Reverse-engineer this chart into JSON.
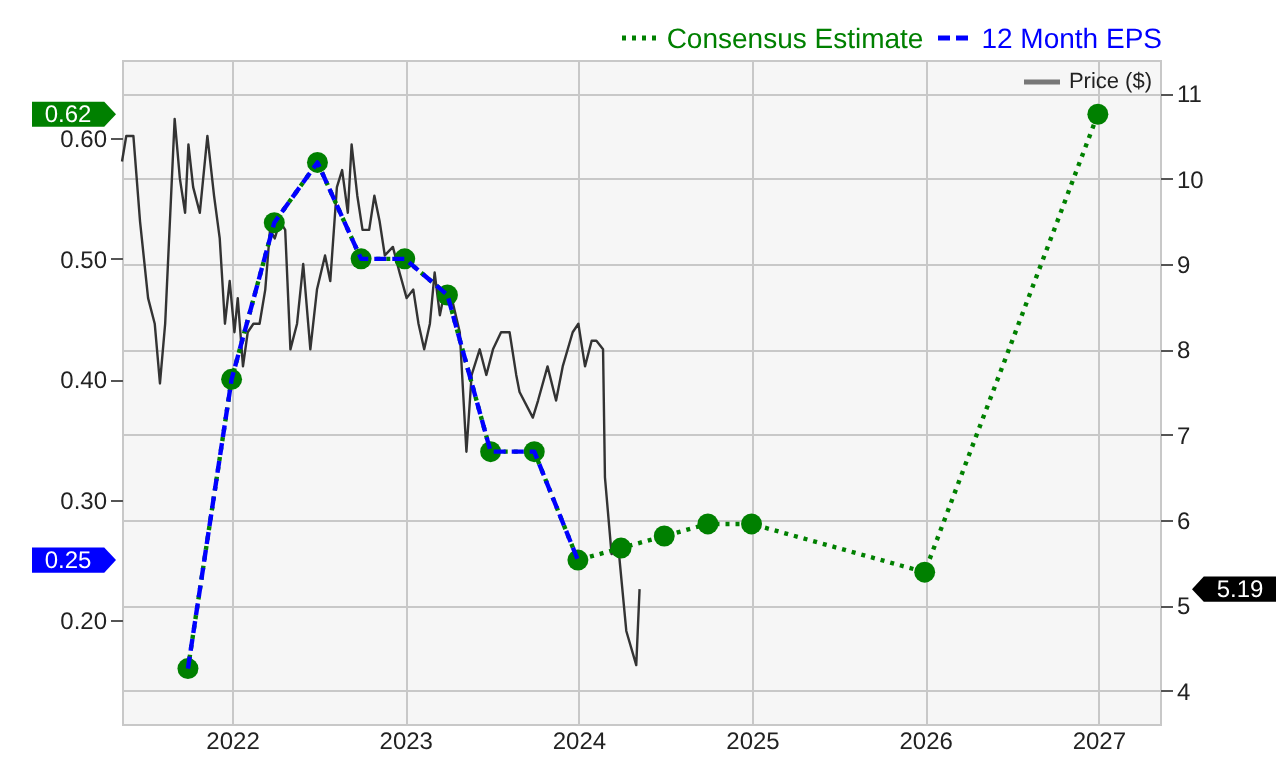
{
  "chart_data": {
    "type": "line",
    "xlim": [
      "2021-05-14",
      "2027-05-11"
    ],
    "xticks": [
      {
        "value": "2022-01-01",
        "label": "2022"
      },
      {
        "value": "2023-01-01",
        "label": "2023"
      },
      {
        "value": "2024-01-01",
        "label": "2024"
      },
      {
        "value": "2025-01-01",
        "label": "2025"
      },
      {
        "value": "2026-01-01",
        "label": "2026"
      },
      {
        "value": "2027-01-01",
        "label": "2027"
      }
    ],
    "ylim": [
      0.114,
      0.665
    ],
    "yticks": [
      {
        "value": 0.2,
        "label": "0.20"
      },
      {
        "value": 0.3,
        "label": "0.30"
      },
      {
        "value": 0.4,
        "label": "0.40"
      },
      {
        "value": 0.5,
        "label": "0.50"
      },
      {
        "value": 0.6,
        "label": "0.60"
      }
    ],
    "y2lim": [
      3.61,
      11.39
    ],
    "y2ticks": [
      4,
      5,
      6,
      7,
      8,
      9,
      10,
      11
    ],
    "grid": true,
    "legend": "top right",
    "annotations": [
      "5.19",
      "0.62",
      "0.25"
    ],
    "series": [
      {
        "name": "Price ($)",
        "color": "#333333",
        "axis": "y2",
        "marker": "none",
        "line_style": "solid",
        "x": [
          "2021-05-14",
          "2021-05-23",
          "2021-06-07",
          "2021-06-21",
          "2021-07-08",
          "2021-07-22",
          "2021-08-02",
          "2021-08-13",
          "2021-09-02",
          "2021-09-13",
          "2021-09-24",
          "2021-10-01",
          "2021-10-11",
          "2021-10-25",
          "2021-11-10",
          "2021-11-24",
          "2021-12-06",
          "2021-12-17",
          "2021-12-27",
          "2022-01-06",
          "2022-01-13",
          "2022-01-24",
          "2022-02-03",
          "2022-02-15",
          "2022-02-28",
          "2022-03-12",
          "2022-03-22",
          "2022-04-01",
          "2022-04-12",
          "2022-04-23",
          "2022-05-04",
          "2022-05-18",
          "2022-05-31",
          "2022-06-15",
          "2022-06-29",
          "2022-07-16",
          "2022-07-27",
          "2022-08-10",
          "2022-08-21",
          "2022-09-02",
          "2022-09-10",
          "2022-09-22",
          "2022-10-03",
          "2022-10-17",
          "2022-10-28",
          "2022-11-08",
          "2022-11-19",
          "2022-12-06",
          "2022-12-20",
          "2023-01-04",
          "2023-01-18",
          "2023-01-29",
          "2023-02-10",
          "2023-02-22",
          "2023-03-04",
          "2023-03-15",
          "2023-03-26",
          "2023-04-09",
          "2023-04-26",
          "2023-05-10",
          "2023-05-21",
          "2023-06-07",
          "2023-06-21",
          "2023-07-05",
          "2023-07-22",
          "2023-08-09",
          "2023-08-23",
          "2023-08-30",
          "2023-09-27",
          "2023-10-08",
          "2023-10-28",
          "2023-11-15",
          "2023-11-29",
          "2023-12-20",
          "2024-01-01",
          "2024-01-15",
          "2024-01-29",
          "2024-02-08",
          "2024-02-22",
          "2024-02-26",
          "2024-03-11",
          "2024-03-25",
          "2024-04-11",
          "2024-05-02",
          "2024-05-09"
        ],
        "values": [
          10.2,
          10.5,
          10.5,
          9.5,
          8.6,
          8.3,
          7.6,
          8.3,
          10.7,
          10.0,
          9.6,
          10.4,
          9.9,
          9.6,
          10.5,
          9.8,
          9.3,
          8.3,
          8.8,
          8.2,
          8.6,
          7.8,
          8.2,
          8.3,
          8.3,
          8.7,
          9.4,
          9.3,
          9.5,
          9.4,
          8.0,
          8.3,
          9.0,
          8.0,
          8.7,
          9.1,
          8.8,
          9.9,
          10.1,
          9.6,
          10.4,
          9.8,
          9.4,
          9.4,
          9.8,
          9.5,
          9.1,
          9.2,
          8.9,
          8.6,
          8.7,
          8.3,
          8.0,
          8.3,
          8.9,
          8.4,
          8.7,
          8.6,
          8.2,
          6.8,
          7.7,
          8.0,
          7.7,
          8.0,
          8.2,
          8.2,
          7.7,
          7.5,
          7.2,
          7.4,
          7.8,
          7.4,
          7.8,
          8.2,
          8.3,
          7.8,
          8.1,
          8.1,
          8.0,
          6.5,
          5.6,
          5.7,
          4.7,
          4.3,
          5.19
        ]
      },
      {
        "name": "Consensus Estimate",
        "color": "#008000",
        "marker": "circle",
        "line_style": "dotted",
        "x": [
          "2021-09-30",
          "2021-12-31",
          "2022-03-31",
          "2022-06-30",
          "2022-09-30",
          "2022-12-31",
          "2023-03-31",
          "2023-06-30",
          "2023-09-30",
          "2023-12-31",
          "2024-03-31",
          "2024-06-30",
          "2024-09-30",
          "2024-12-31",
          "2025-12-31",
          "2026-12-31"
        ],
        "values": [
          0.16,
          0.4,
          0.53,
          0.58,
          0.5,
          0.5,
          0.47,
          0.34,
          0.34,
          0.25,
          0.26,
          0.27,
          0.28,
          0.28,
          0.24,
          0.62
        ]
      },
      {
        "name": "12 Month EPS",
        "color": "#0000ff",
        "marker": "none",
        "line_style": "dashed",
        "x": [
          "2021-09-30",
          "2021-12-31",
          "2022-03-31",
          "2022-06-30",
          "2022-09-30",
          "2022-12-31",
          "2023-03-31",
          "2023-06-30",
          "2023-09-30",
          "2023-12-31"
        ],
        "values": [
          0.16,
          0.4,
          0.53,
          0.58,
          0.5,
          0.5,
          0.47,
          0.34,
          0.34,
          0.25
        ]
      }
    ]
  }
}
